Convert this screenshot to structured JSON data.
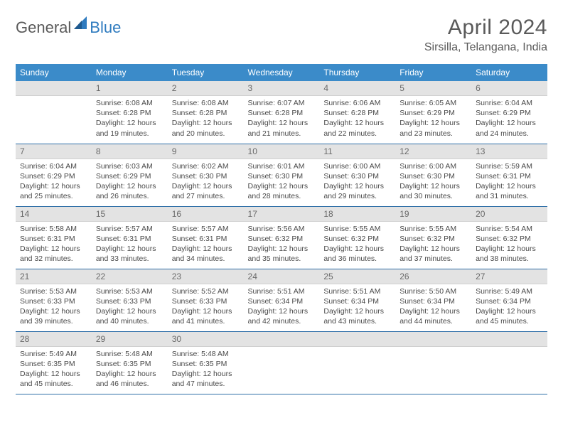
{
  "logo": {
    "text1": "General",
    "text2": "Blue"
  },
  "title": "April 2024",
  "location": "Sirsilla, Telangana, India",
  "colors": {
    "header_bg": "#3b8bc9",
    "header_fg": "#ffffff",
    "daynum_bg": "#e3e3e3",
    "daynum_fg": "#6a6a6a",
    "row_divider": "#2f6fa8",
    "text": "#4a4a4a",
    "logo_blue": "#2f7bbf",
    "logo_gray": "#5a5a5a"
  },
  "weekdays": [
    "Sunday",
    "Monday",
    "Tuesday",
    "Wednesday",
    "Thursday",
    "Friday",
    "Saturday"
  ],
  "weeks": [
    [
      null,
      {
        "n": "1",
        "sunrise": "6:08 AM",
        "sunset": "6:28 PM",
        "daylight": "12 hours and 19 minutes."
      },
      {
        "n": "2",
        "sunrise": "6:08 AM",
        "sunset": "6:28 PM",
        "daylight": "12 hours and 20 minutes."
      },
      {
        "n": "3",
        "sunrise": "6:07 AM",
        "sunset": "6:28 PM",
        "daylight": "12 hours and 21 minutes."
      },
      {
        "n": "4",
        "sunrise": "6:06 AM",
        "sunset": "6:28 PM",
        "daylight": "12 hours and 22 minutes."
      },
      {
        "n": "5",
        "sunrise": "6:05 AM",
        "sunset": "6:29 PM",
        "daylight": "12 hours and 23 minutes."
      },
      {
        "n": "6",
        "sunrise": "6:04 AM",
        "sunset": "6:29 PM",
        "daylight": "12 hours and 24 minutes."
      }
    ],
    [
      {
        "n": "7",
        "sunrise": "6:04 AM",
        "sunset": "6:29 PM",
        "daylight": "12 hours and 25 minutes."
      },
      {
        "n": "8",
        "sunrise": "6:03 AM",
        "sunset": "6:29 PM",
        "daylight": "12 hours and 26 minutes."
      },
      {
        "n": "9",
        "sunrise": "6:02 AM",
        "sunset": "6:30 PM",
        "daylight": "12 hours and 27 minutes."
      },
      {
        "n": "10",
        "sunrise": "6:01 AM",
        "sunset": "6:30 PM",
        "daylight": "12 hours and 28 minutes."
      },
      {
        "n": "11",
        "sunrise": "6:00 AM",
        "sunset": "6:30 PM",
        "daylight": "12 hours and 29 minutes."
      },
      {
        "n": "12",
        "sunrise": "6:00 AM",
        "sunset": "6:30 PM",
        "daylight": "12 hours and 30 minutes."
      },
      {
        "n": "13",
        "sunrise": "5:59 AM",
        "sunset": "6:31 PM",
        "daylight": "12 hours and 31 minutes."
      }
    ],
    [
      {
        "n": "14",
        "sunrise": "5:58 AM",
        "sunset": "6:31 PM",
        "daylight": "12 hours and 32 minutes."
      },
      {
        "n": "15",
        "sunrise": "5:57 AM",
        "sunset": "6:31 PM",
        "daylight": "12 hours and 33 minutes."
      },
      {
        "n": "16",
        "sunrise": "5:57 AM",
        "sunset": "6:31 PM",
        "daylight": "12 hours and 34 minutes."
      },
      {
        "n": "17",
        "sunrise": "5:56 AM",
        "sunset": "6:32 PM",
        "daylight": "12 hours and 35 minutes."
      },
      {
        "n": "18",
        "sunrise": "5:55 AM",
        "sunset": "6:32 PM",
        "daylight": "12 hours and 36 minutes."
      },
      {
        "n": "19",
        "sunrise": "5:55 AM",
        "sunset": "6:32 PM",
        "daylight": "12 hours and 37 minutes."
      },
      {
        "n": "20",
        "sunrise": "5:54 AM",
        "sunset": "6:32 PM",
        "daylight": "12 hours and 38 minutes."
      }
    ],
    [
      {
        "n": "21",
        "sunrise": "5:53 AM",
        "sunset": "6:33 PM",
        "daylight": "12 hours and 39 minutes."
      },
      {
        "n": "22",
        "sunrise": "5:53 AM",
        "sunset": "6:33 PM",
        "daylight": "12 hours and 40 minutes."
      },
      {
        "n": "23",
        "sunrise": "5:52 AM",
        "sunset": "6:33 PM",
        "daylight": "12 hours and 41 minutes."
      },
      {
        "n": "24",
        "sunrise": "5:51 AM",
        "sunset": "6:34 PM",
        "daylight": "12 hours and 42 minutes."
      },
      {
        "n": "25",
        "sunrise": "5:51 AM",
        "sunset": "6:34 PM",
        "daylight": "12 hours and 43 minutes."
      },
      {
        "n": "26",
        "sunrise": "5:50 AM",
        "sunset": "6:34 PM",
        "daylight": "12 hours and 44 minutes."
      },
      {
        "n": "27",
        "sunrise": "5:49 AM",
        "sunset": "6:34 PM",
        "daylight": "12 hours and 45 minutes."
      }
    ],
    [
      {
        "n": "28",
        "sunrise": "5:49 AM",
        "sunset": "6:35 PM",
        "daylight": "12 hours and 45 minutes."
      },
      {
        "n": "29",
        "sunrise": "5:48 AM",
        "sunset": "6:35 PM",
        "daylight": "12 hours and 46 minutes."
      },
      {
        "n": "30",
        "sunrise": "5:48 AM",
        "sunset": "6:35 PM",
        "daylight": "12 hours and 47 minutes."
      },
      null,
      null,
      null,
      null
    ]
  ],
  "labels": {
    "sunrise": "Sunrise: ",
    "sunset": "Sunset: ",
    "daylight": "Daylight: "
  }
}
